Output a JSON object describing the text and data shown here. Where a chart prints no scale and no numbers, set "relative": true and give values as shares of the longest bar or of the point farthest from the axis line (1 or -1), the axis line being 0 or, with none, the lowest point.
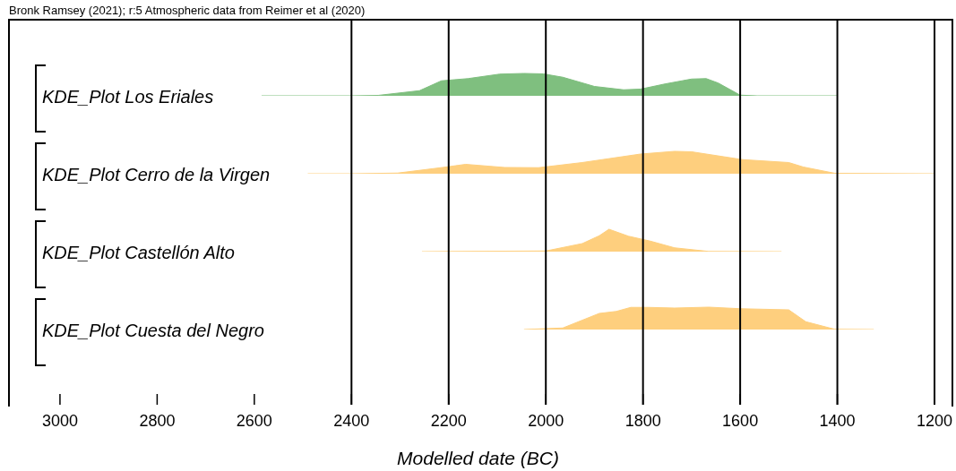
{
  "chart_data": [
    {
      "type": "area",
      "relative": true,
      "xlim": [
        3105,
        1165
      ],
      "tick_labels": false,
      "legend": false,
      "annotations": [
        "Bronk Ramsey (2021); r:5 Atmospheric data from Reimer et al (2020)"
      ],
      "ref_lines": [
        {
          "axis": "x",
          "value": 2400
        },
        {
          "axis": "x",
          "value": 2200
        },
        {
          "axis": "x",
          "value": 2000
        },
        {
          "axis": "x",
          "value": 1800
        },
        {
          "axis": "x",
          "value": 1600
        },
        {
          "axis": "x",
          "value": 1400
        },
        {
          "axis": "x",
          "value": 1200
        }
      ],
      "series": [
        {
          "name": "KDE_Plot Los Eriales",
          "color": "#7fbf7f",
          "x": [
            2585,
            2400,
            2345,
            2260,
            2215,
            2160,
            2095,
            2045,
            2005,
            1965,
            1900,
            1840,
            1805,
            1755,
            1700,
            1670,
            1645,
            1600,
            1565,
            1400
          ],
          "values": [
            0,
            0,
            0.02,
            0.23,
            0.67,
            0.77,
            0.97,
            1,
            0.98,
            0.83,
            0.42,
            0.27,
            0.3,
            0.53,
            0.75,
            0.77,
            0.57,
            0.03,
            0,
            0
          ]
        }
      ]
    },
    {
      "type": "area",
      "relative": true,
      "xlim": [
        3105,
        1165
      ],
      "tick_labels": false,
      "legend": false,
      "ref_lines": [
        {
          "axis": "x",
          "value": 2400
        },
        {
          "axis": "x",
          "value": 2200
        },
        {
          "axis": "x",
          "value": 2000
        },
        {
          "axis": "x",
          "value": 1800
        },
        {
          "axis": "x",
          "value": 1600
        },
        {
          "axis": "x",
          "value": 1400
        },
        {
          "axis": "x",
          "value": 1200
        }
      ],
      "series": [
        {
          "name": "KDE_Plot Cerro de la Virgen",
          "color": "#fecf7e",
          "x": [
            2490,
            2400,
            2305,
            2205,
            2165,
            2085,
            2015,
            1925,
            1805,
            1735,
            1700,
            1595,
            1500,
            1470,
            1405,
            1200
          ],
          "values": [
            0,
            0,
            0.03,
            0.3,
            0.42,
            0.28,
            0.27,
            0.5,
            0.88,
            1,
            0.98,
            0.63,
            0.5,
            0.3,
            0.02,
            0
          ]
        }
      ]
    },
    {
      "type": "area",
      "relative": true,
      "xlim": [
        3105,
        1165
      ],
      "tick_labels": false,
      "legend": false,
      "ref_lines": [
        {
          "axis": "x",
          "value": 2400
        },
        {
          "axis": "x",
          "value": 2200
        },
        {
          "axis": "x",
          "value": 2000
        },
        {
          "axis": "x",
          "value": 1800
        },
        {
          "axis": "x",
          "value": 1600
        },
        {
          "axis": "x",
          "value": 1400
        },
        {
          "axis": "x",
          "value": 1200
        }
      ],
      "series": [
        {
          "name": "KDE_Plot Castellón Alto",
          "color": "#fecf7e",
          "x": [
            2255,
            2000,
            1925,
            1890,
            1870,
            1830,
            1785,
            1735,
            1665,
            1515
          ],
          "values": [
            0,
            0.03,
            0.36,
            0.71,
            1,
            0.69,
            0.47,
            0.17,
            0.01,
            0
          ]
        }
      ]
    },
    {
      "type": "area",
      "relative": true,
      "xlim": [
        3105,
        1165
      ],
      "tick_labels": "x",
      "legend": false,
      "xlabel": "Modelled date (BC)",
      "xticks": [
        3000,
        2800,
        2600,
        2400,
        2200,
        2000,
        1800,
        1600,
        1400,
        1200
      ],
      "ref_lines": [
        {
          "axis": "x",
          "value": 2400
        },
        {
          "axis": "x",
          "value": 2200
        },
        {
          "axis": "x",
          "value": 2000
        },
        {
          "axis": "x",
          "value": 1800
        },
        {
          "axis": "x",
          "value": 1600
        },
        {
          "axis": "x",
          "value": 1400
        },
        {
          "axis": "x",
          "value": 1200
        }
      ],
      "series": [
        {
          "name": "KDE_Plot Cuesta del Negro",
          "color": "#fecf7e",
          "x": [
            2045,
            1965,
            1890,
            1855,
            1825,
            1790,
            1735,
            1665,
            1600,
            1500,
            1465,
            1405,
            1325
          ],
          "values": [
            0,
            0.07,
            0.72,
            0.81,
            0.99,
            0.99,
            0.96,
            1,
            0.93,
            0.88,
            0.35,
            0.01,
            0
          ]
        }
      ]
    }
  ]
}
